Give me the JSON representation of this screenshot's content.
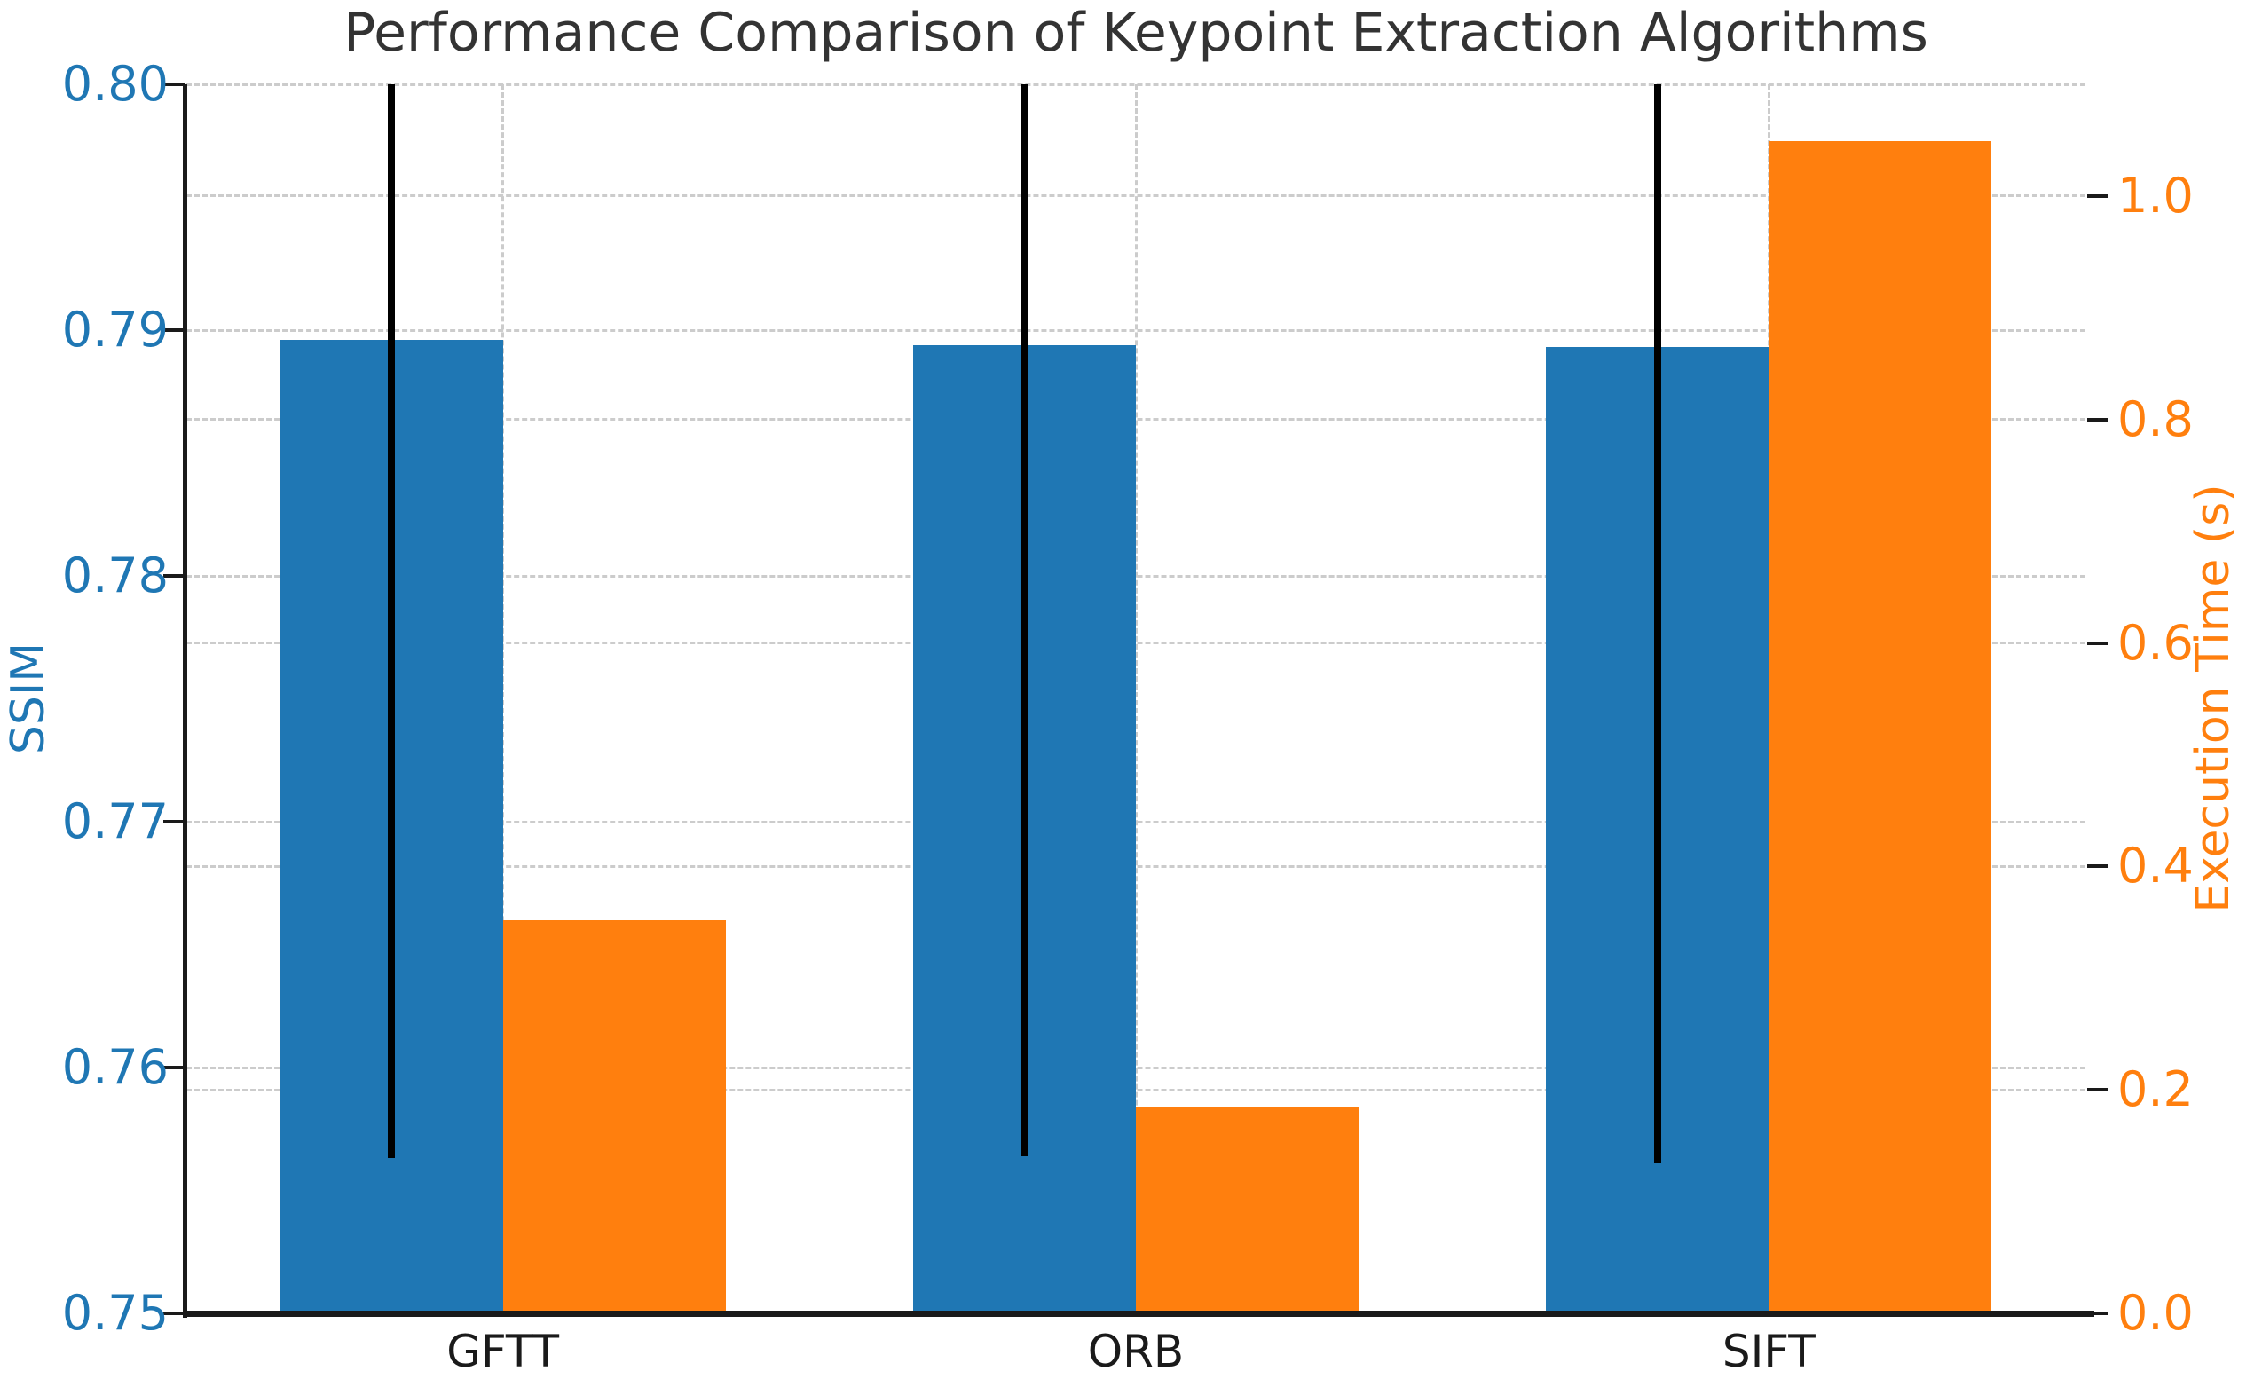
{
  "chart_data": {
    "type": "bar",
    "title": "Performance Comparison of Keypoint Extraction Algorithms",
    "categories": [
      "GFTT",
      "ORB",
      "SIFT"
    ],
    "series": [
      {
        "name": "SSIM",
        "axis": "left",
        "color": "#1f77b4",
        "values": [
          0.7896,
          0.7894,
          0.7893
        ],
        "errors": [
          0.0333,
          0.033,
          0.0332
        ],
        "error_color": "#000000"
      },
      {
        "name": "Execution Time (s)",
        "axis": "right",
        "color": "#ff7f0e",
        "values": [
          0.352,
          0.185,
          1.049
        ]
      }
    ],
    "ylabel_left": "SSIM",
    "ylabel_right": "Execution Time (s)",
    "ylabel_left_color": "#1f77b4",
    "ylabel_right_color": "#ff7f0e",
    "ylim_left": [
      0.75,
      0.8
    ],
    "ylim_right": [
      0.0,
      1.1
    ],
    "yticks_left": {
      "labels": [
        "0.80",
        "0.79",
        "0.78",
        "0.77",
        "0.76",
        "0.75"
      ],
      "values": [
        0.8,
        0.79,
        0.78,
        0.77,
        0.76,
        0.75
      ],
      "color": "#1f77b4"
    },
    "yticks_right": {
      "labels": [
        "1.0",
        "0.8",
        "0.6",
        "0.4",
        "0.2",
        "0.0"
      ],
      "values": [
        1.0,
        0.8,
        0.6,
        0.4,
        0.2,
        0.0
      ],
      "color": "#ff7f0e"
    },
    "grid": true,
    "grid_color": "#cccccc",
    "legend": false,
    "bar_width_axis_units": 0.352,
    "xlim": [
      -0.5,
      2.5
    ]
  }
}
